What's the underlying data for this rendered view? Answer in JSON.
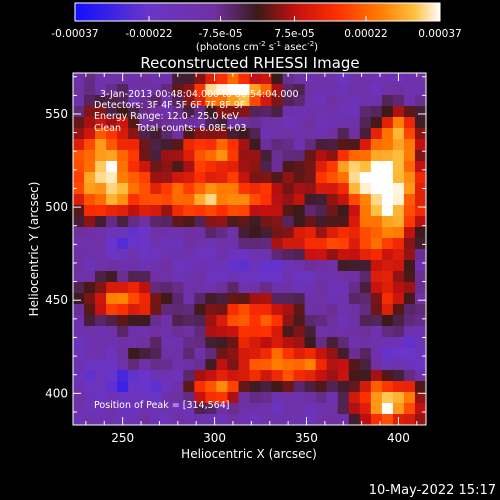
{
  "chart_data": {
    "type": "heatmap",
    "title": "Reconstructed RHESSI Image",
    "xlabel": "Heliocentric X (arcsec)",
    "ylabel": "Heliocentric Y (arcsec)",
    "xlim": [
      223,
      415
    ],
    "ylim": [
      383,
      572
    ],
    "xticks": [
      250,
      300,
      350,
      400
    ],
    "yticks": [
      400,
      450,
      500,
      550
    ],
    "colorbar": {
      "ticks": [
        -0.00037,
        -0.00022,
        -7.5e-05,
        7.5e-05,
        0.00022,
        0.00037
      ],
      "tick_labels": [
        "-0.00037",
        "-0.00022",
        "-7.5e-05",
        "7.5e-05",
        "0.00022",
        "0.00037"
      ],
      "unit_base": "(photons cm",
      "unit_exp1": "-2",
      "unit_mid": " s",
      "unit_exp2": "-1",
      "unit_tail": " asec",
      "unit_exp3": "-2",
      "unit_close": ")",
      "range": [
        -0.00037,
        0.00037
      ],
      "colors": [
        "#1010ff",
        "#6a35c8",
        "#7030a0",
        "#5a2a1a",
        "#c01010",
        "#ff3000",
        "#ff8000",
        "#ffc040",
        "#ffffff"
      ]
    },
    "annotations": [
      "3-Jan-2013 00:48:04.000 to 00:54:04.000",
      "Detectors: 3F 4F 5F 6F 7F 8F 9F",
      "Energy Range: 12.0 - 25.0 keV",
      "Clean     Total counts: 6.08E+03"
    ],
    "peak_label": "Position of Peak = [314,564]",
    "peak": [
      314,
      564
    ],
    "grid_size": [
      32,
      32
    ],
    "features": [
      {
        "x": 310,
        "y": 562,
        "sx": 18,
        "sy": 7,
        "amp": 1.0
      },
      {
        "x": 240,
        "y": 520,
        "sx": 16,
        "sy": 22,
        "amp": 0.85
      },
      {
        "x": 300,
        "y": 530,
        "sx": 16,
        "sy": 8,
        "amp": 0.7
      },
      {
        "x": 300,
        "y": 505,
        "sx": 30,
        "sy": 9,
        "amp": 0.8
      },
      {
        "x": 380,
        "y": 520,
        "sx": 22,
        "sy": 10,
        "amp": 0.75
      },
      {
        "x": 395,
        "y": 500,
        "sx": 14,
        "sy": 14,
        "amp": 0.85
      },
      {
        "x": 400,
        "y": 540,
        "sx": 10,
        "sy": 10,
        "amp": 0.7
      },
      {
        "x": 355,
        "y": 480,
        "sx": 25,
        "sy": 8,
        "amp": 0.6
      },
      {
        "x": 250,
        "y": 450,
        "sx": 15,
        "sy": 8,
        "amp": 0.7
      },
      {
        "x": 320,
        "y": 440,
        "sx": 20,
        "sy": 10,
        "amp": 0.65
      },
      {
        "x": 340,
        "y": 415,
        "sx": 25,
        "sy": 8,
        "amp": 0.7
      },
      {
        "x": 395,
        "y": 395,
        "sx": 14,
        "sy": 10,
        "amp": 0.9
      },
      {
        "x": 300,
        "y": 402,
        "sx": 10,
        "sy": 6,
        "amp": 0.7
      },
      {
        "x": 260,
        "y": 418,
        "sx": 10,
        "sy": 6,
        "amp": 0.4
      },
      {
        "x": 395,
        "y": 455,
        "sx": 10,
        "sy": 15,
        "amp": 0.5
      }
    ],
    "cold_spots": [
      {
        "x": 250,
        "y": 485,
        "sx": 12,
        "sy": 8,
        "amp": 0.6
      },
      {
        "x": 255,
        "y": 410,
        "sx": 14,
        "sy": 8,
        "amp": 0.5
      },
      {
        "x": 330,
        "y": 470,
        "sx": 20,
        "sy": 8,
        "amp": 0.45
      },
      {
        "x": 400,
        "y": 420,
        "sx": 10,
        "sy": 8,
        "amp": 0.4
      }
    ]
  },
  "footer": {
    "date": "10-May-2022 15:17"
  }
}
